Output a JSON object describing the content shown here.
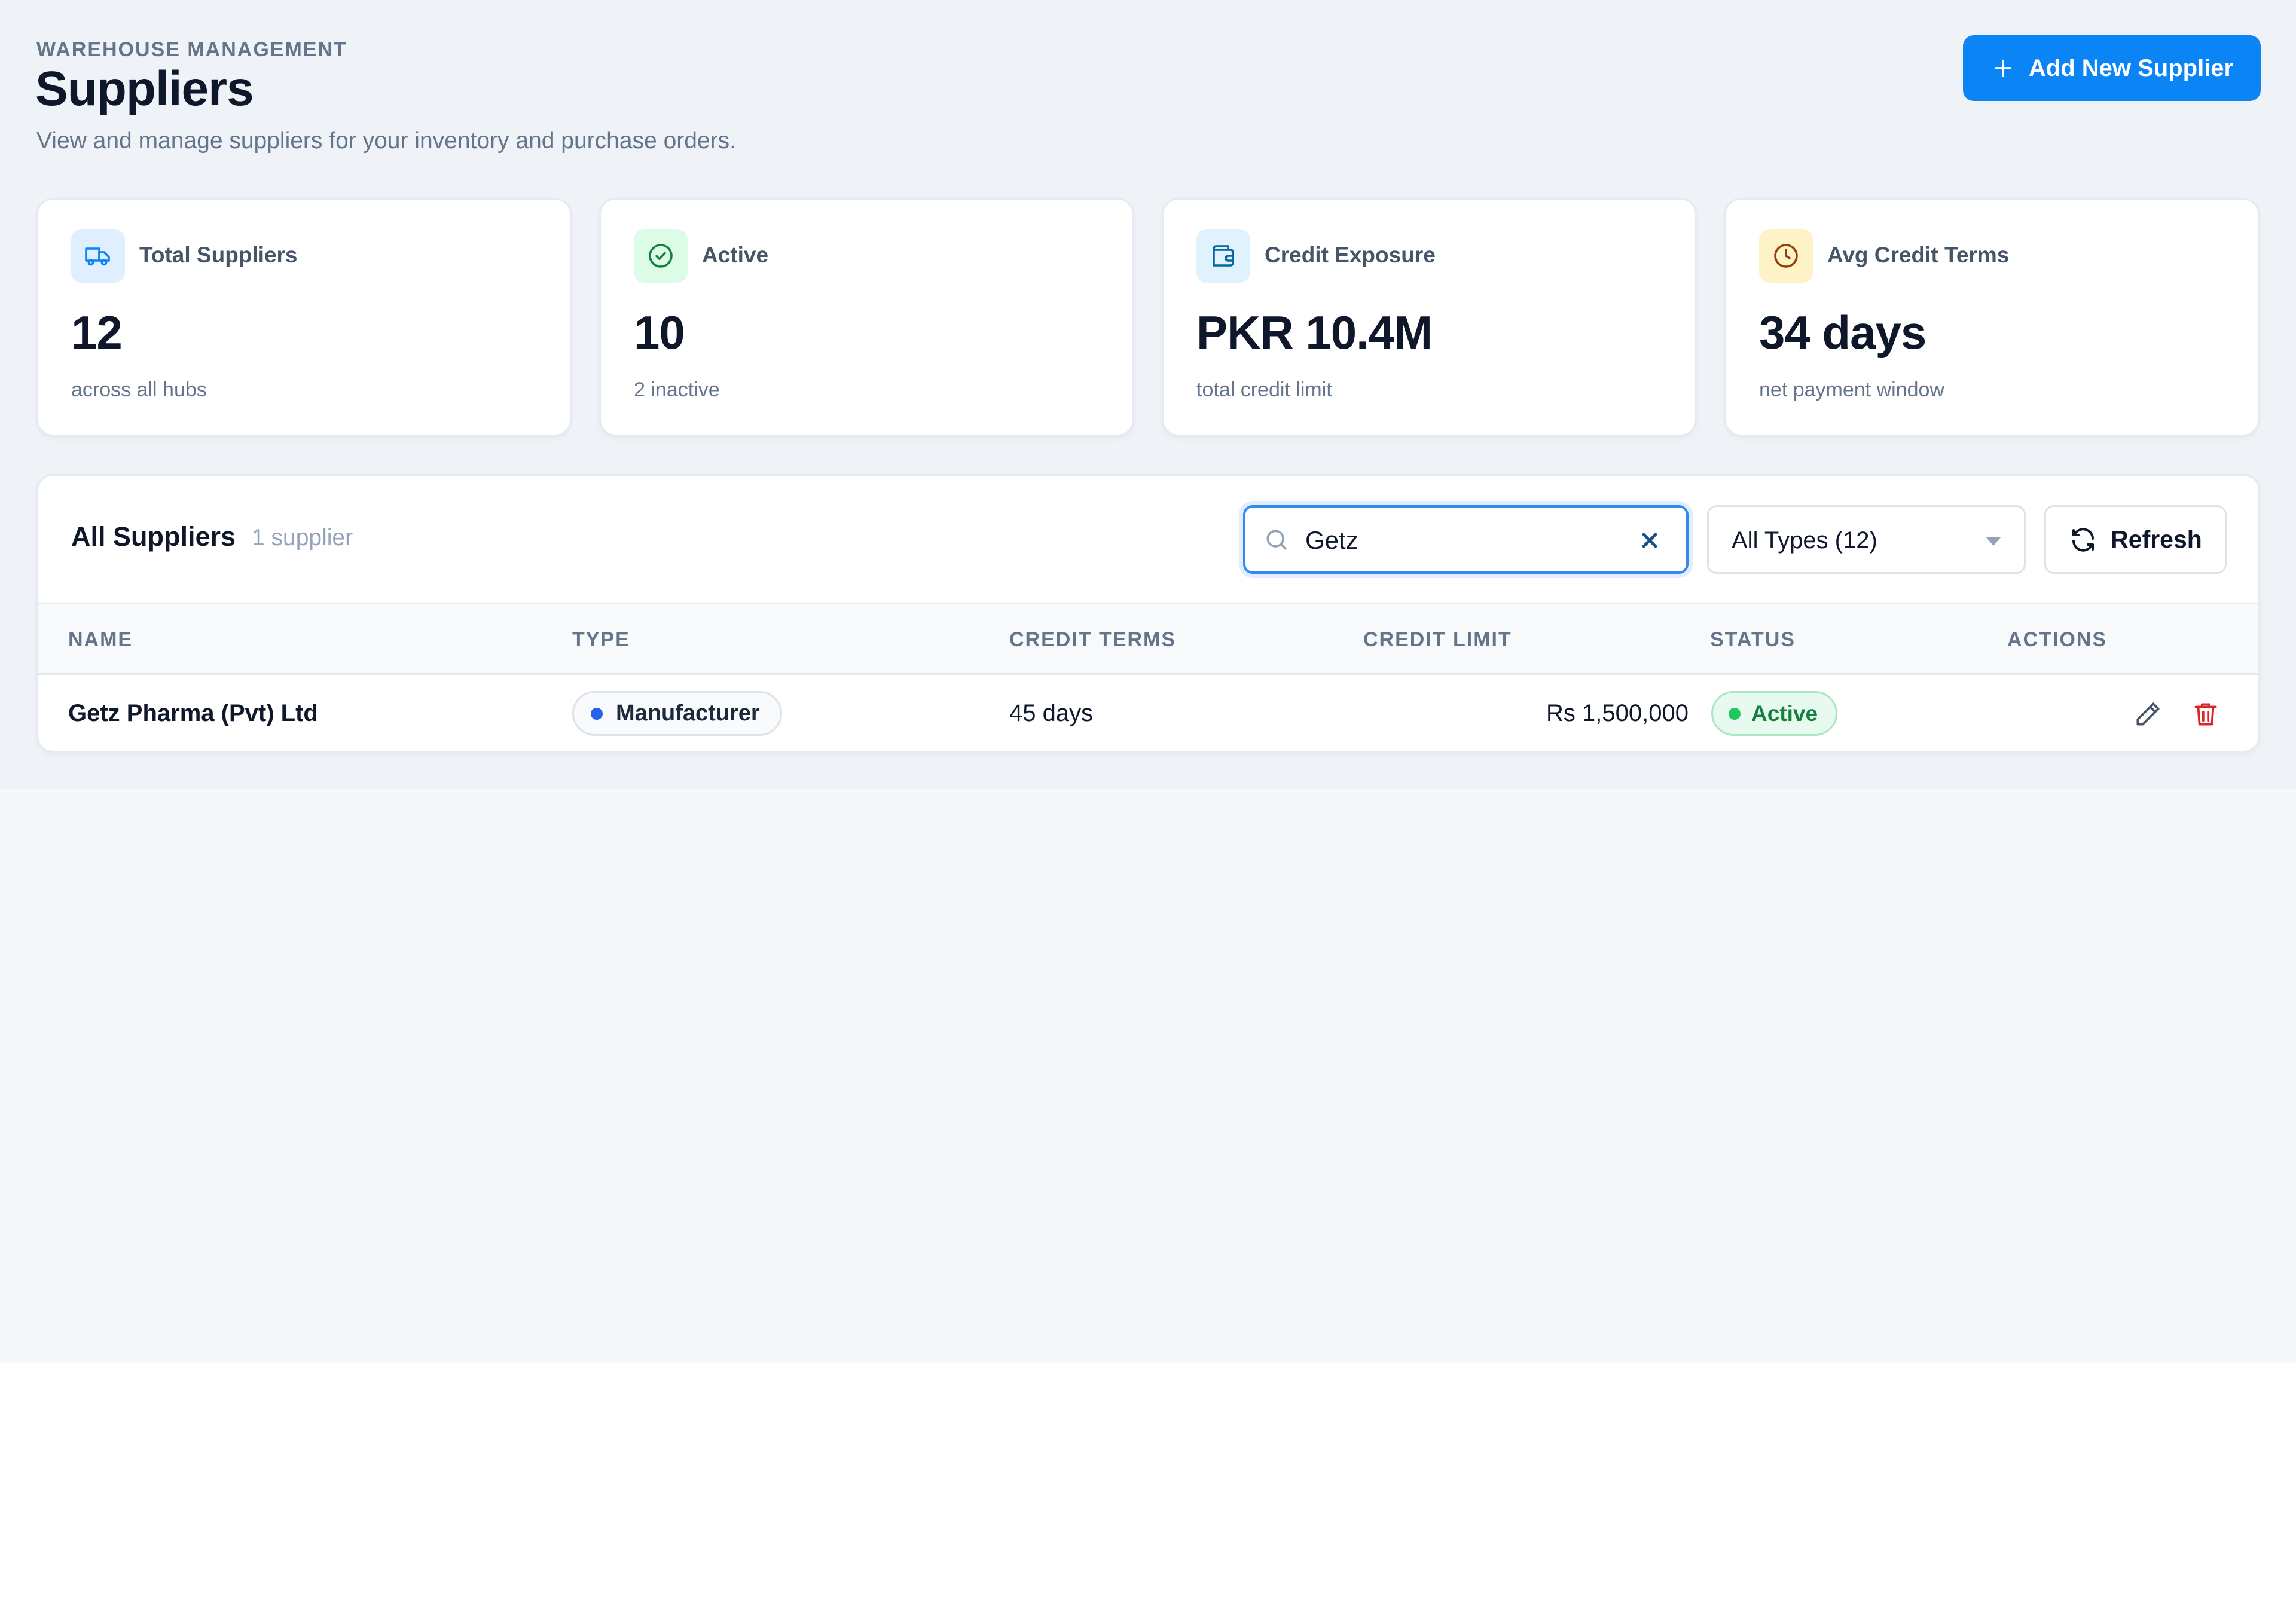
{
  "header": {
    "eyebrow": "WAREHOUSE MANAGEMENT",
    "title": "Suppliers",
    "subtitle": "View and manage suppliers for your inventory and purchase orders.",
    "add_button_label": "Add New Supplier"
  },
  "stats": [
    {
      "label": "Total Suppliers",
      "value": "12",
      "note": "across all hubs",
      "icon": "truck-icon",
      "icon_color": "#0b84f6",
      "icon_bg": "#e0efff"
    },
    {
      "label": "Active",
      "value": "10",
      "note": "2 inactive",
      "icon": "check-circle-icon",
      "icon_color": "#15803d",
      "icon_bg": "#dcfce7"
    },
    {
      "label": "Credit Exposure",
      "value": "PKR 10.4M",
      "note": "total credit limit",
      "icon": "wallet-icon",
      "icon_color": "#0369a1",
      "icon_bg": "#e0f2fe"
    },
    {
      "label": "Avg Credit Terms",
      "value": "34 days",
      "note": "net payment window",
      "icon": "clock-icon",
      "icon_color": "#b45309",
      "icon_bg": "#fef3c7"
    }
  ],
  "table": {
    "title": "All Suppliers",
    "count": "1 supplier",
    "search": {
      "value": "Getz",
      "placeholder": ""
    },
    "type_filter": {
      "selected": "All Types (12)"
    },
    "refresh_label": "Refresh",
    "columns": [
      "NAME",
      "TYPE",
      "CREDIT TERMS",
      "CREDIT LIMIT",
      "STATUS",
      "ACTIONS"
    ],
    "rows": [
      {
        "name": "Getz Pharma (Pvt) Ltd",
        "type": "Manufacturer",
        "credit_terms": "45 days",
        "credit_limit": "Rs 1,500,000",
        "status": "Active"
      }
    ]
  },
  "colors": {
    "accent": "#0b84f6",
    "active_status": "#15803d",
    "delete": "#dc2626"
  }
}
